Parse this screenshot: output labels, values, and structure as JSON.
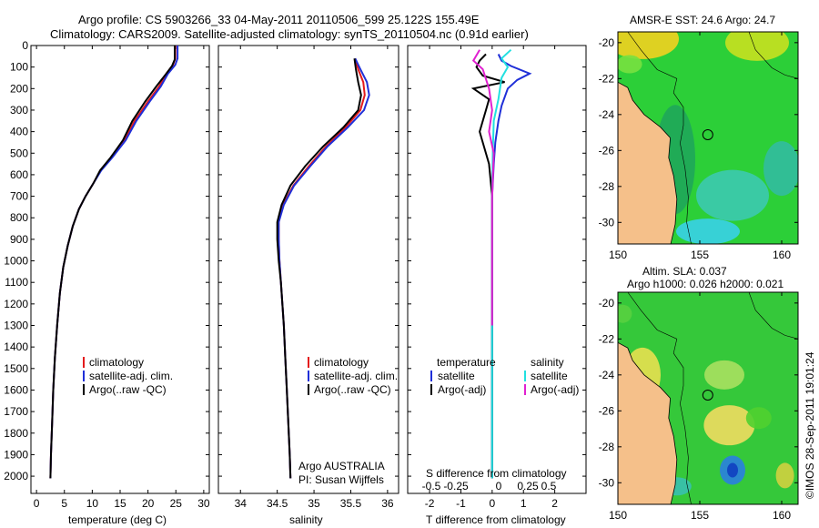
{
  "header": {
    "line1": "Argo profile: CS 5903266_33 04-May-2011 20110506_599 25.122S 155.49E",
    "line2": "Climatology: CARS2009. Satellite-adjusted climatology: synTS_20110504.nc (0.91d earlier)"
  },
  "colors": {
    "climatology": "#e41a1c",
    "satellite": "#1f2fd8",
    "argo": "#000000",
    "sal_satellite": "#22e0e0",
    "sal_argo": "#e020d0",
    "land": "#f5c08a"
  },
  "chart_data": [
    {
      "type": "line",
      "id": "temperature-panel",
      "xlabel": "temperature (deg C)",
      "ylabel": "",
      "xlim": [
        -1,
        31
      ],
      "ylim": [
        2080,
        0
      ],
      "x_ticks": [
        0,
        5,
        10,
        15,
        20,
        25,
        30
      ],
      "y_ticks": [
        0,
        100,
        200,
        300,
        400,
        500,
        600,
        700,
        800,
        900,
        1000,
        1100,
        1200,
        1300,
        1400,
        1500,
        1600,
        1700,
        1800,
        1900,
        2000
      ],
      "legend": [
        "climatology",
        "satellite-adj. clim.",
        "Argo(..raw -QC)"
      ],
      "series": [
        {
          "name": "climatology",
          "points": [
            [
              24.9,
              0
            ],
            [
              24.9,
              60
            ],
            [
              24.5,
              90
            ],
            [
              23.3,
              130
            ],
            [
              22,
              190
            ],
            [
              20,
              260
            ],
            [
              17.6,
              350
            ],
            [
              15.8,
              440
            ],
            [
              13.5,
              520
            ],
            [
              11.5,
              580
            ],
            [
              10.2,
              640
            ],
            [
              8.8,
              700
            ],
            [
              7.6,
              760
            ],
            [
              6.5,
              840
            ],
            [
              5.6,
              930
            ],
            [
              4.8,
              1030
            ],
            [
              4.2,
              1150
            ],
            [
              3.7,
              1300
            ],
            [
              3.3,
              1450
            ],
            [
              3,
              1600
            ],
            [
              2.8,
              1750
            ],
            [
              2.6,
              1900
            ],
            [
              2.5,
              2010
            ]
          ]
        },
        {
          "name": "satellite-adj. clim.",
          "points": [
            [
              25.3,
              0
            ],
            [
              25.3,
              60
            ],
            [
              24.9,
              90
            ],
            [
              23.6,
              130
            ],
            [
              22.3,
              190
            ],
            [
              20.3,
              260
            ],
            [
              17.9,
              350
            ],
            [
              16,
              440
            ],
            [
              13.6,
              520
            ],
            [
              11.6,
              580
            ],
            [
              10.2,
              640
            ],
            [
              8.8,
              700
            ],
            [
              7.6,
              760
            ],
            [
              6.5,
              840
            ],
            [
              5.6,
              930
            ],
            [
              4.8,
              1030
            ],
            [
              4.2,
              1150
            ],
            [
              3.7,
              1300
            ],
            [
              3.3,
              1450
            ],
            [
              3,
              1600
            ],
            [
              2.8,
              1750
            ],
            [
              2.6,
              1900
            ],
            [
              2.5,
              2010
            ]
          ]
        },
        {
          "name": "Argo(..raw -QC)",
          "points": [
            [
              24.8,
              0
            ],
            [
              24.8,
              65
            ],
            [
              24.3,
              95
            ],
            [
              23.3,
              130
            ],
            [
              21.5,
              190
            ],
            [
              19.5,
              260
            ],
            [
              17.2,
              350
            ],
            [
              15.5,
              440
            ],
            [
              13.3,
              520
            ],
            [
              11.4,
              580
            ],
            [
              10.2,
              640
            ],
            [
              8.8,
              700
            ],
            [
              7.6,
              760
            ],
            [
              6.5,
              840
            ],
            [
              5.6,
              930
            ],
            [
              4.8,
              1030
            ],
            [
              4.2,
              1150
            ],
            [
              3.7,
              1300
            ],
            [
              3.3,
              1450
            ],
            [
              3,
              1600
            ],
            [
              2.8,
              1750
            ],
            [
              2.6,
              1900
            ],
            [
              2.5,
              2010
            ]
          ]
        }
      ]
    },
    {
      "type": "line",
      "id": "salinity-panel",
      "xlabel": "salinity",
      "xlim": [
        33.7,
        36.15
      ],
      "ylim": [
        2080,
        0
      ],
      "x_ticks": [
        34,
        34.5,
        35,
        35.5,
        36
      ],
      "legend": [
        "climatology",
        "satellite-adj. clim.",
        "Argo(..raw -QC)"
      ],
      "annotation": [
        "Argo AUSTRALIA",
        "PI: Susan Wijffels"
      ],
      "series": [
        {
          "name": "climatology",
          "points": [
            [
              35.56,
              60
            ],
            [
              35.6,
              110
            ],
            [
              35.67,
              170
            ],
            [
              35.69,
              230
            ],
            [
              35.63,
              300
            ],
            [
              35.43,
              380
            ],
            [
              35.16,
              470
            ],
            [
              34.93,
              560
            ],
            [
              34.72,
              650
            ],
            [
              34.58,
              740
            ],
            [
              34.52,
              820
            ],
            [
              34.52,
              900
            ],
            [
              34.53,
              1000
            ],
            [
              34.55,
              1100
            ],
            [
              34.57,
              1200
            ],
            [
              34.59,
              1300
            ],
            [
              34.61,
              1450
            ],
            [
              34.63,
              1600
            ],
            [
              34.65,
              1750
            ],
            [
              34.67,
              1900
            ],
            [
              34.68,
              2010
            ]
          ]
        },
        {
          "name": "satellite-adj. clim.",
          "points": [
            [
              35.56,
              60
            ],
            [
              35.63,
              110
            ],
            [
              35.72,
              170
            ],
            [
              35.75,
              230
            ],
            [
              35.68,
              300
            ],
            [
              35.46,
              380
            ],
            [
              35.18,
              470
            ],
            [
              34.95,
              560
            ],
            [
              34.73,
              650
            ],
            [
              34.59,
              740
            ],
            [
              34.52,
              820
            ],
            [
              34.52,
              900
            ],
            [
              34.53,
              1000
            ],
            [
              34.55,
              1100
            ],
            [
              34.57,
              1200
            ],
            [
              34.59,
              1300
            ],
            [
              34.61,
              1450
            ],
            [
              34.63,
              1600
            ],
            [
              34.65,
              1750
            ],
            [
              34.67,
              1900
            ],
            [
              34.68,
              2010
            ]
          ]
        },
        {
          "name": "Argo(..raw -QC)",
          "points": [
            [
              35.55,
              60
            ],
            [
              35.57,
              110
            ],
            [
              35.6,
              170
            ],
            [
              35.64,
              230
            ],
            [
              35.6,
              300
            ],
            [
              35.4,
              380
            ],
            [
              35.12,
              470
            ],
            [
              34.88,
              560
            ],
            [
              34.68,
              650
            ],
            [
              34.56,
              740
            ],
            [
              34.5,
              820
            ],
            [
              34.5,
              900
            ],
            [
              34.52,
              1000
            ],
            [
              34.55,
              1100
            ],
            [
              34.57,
              1200
            ],
            [
              34.59,
              1300
            ],
            [
              34.61,
              1450
            ],
            [
              34.63,
              1600
            ],
            [
              34.65,
              1750
            ],
            [
              34.67,
              1900
            ],
            [
              34.68,
              2010
            ]
          ]
        }
      ]
    },
    {
      "type": "line",
      "id": "difference-panel",
      "xlabel_bottom": "T difference from climatology",
      "xlabel_top": "S difference from climatology",
      "xlim_T": [
        -2.7,
        3.0
      ],
      "ylim": [
        2080,
        0
      ],
      "x_ticks_T": [
        -2,
        -1,
        0,
        1,
        2
      ],
      "x_ticks_S": [
        "-0.5",
        "-0.25",
        "0",
        "0.25",
        "0.5"
      ],
      "legend_temperature": {
        "title": "temperature",
        "items": [
          "satellite",
          "Argo(-adj)"
        ]
      },
      "legend_salinity": {
        "title": "salinity",
        "items": [
          "satellite",
          "Argo(-adj)"
        ]
      },
      "series": [
        {
          "name": "T satellite",
          "points": [
            [
              0.2,
              40
            ],
            [
              0.3,
              70
            ],
            [
              0.6,
              95
            ],
            [
              1.2,
              130
            ],
            [
              0.8,
              160
            ],
            [
              0.5,
              200
            ],
            [
              0.3,
              280
            ],
            [
              0.2,
              350
            ],
            [
              0.1,
              450
            ],
            [
              0.05,
              550
            ],
            [
              0,
              700
            ],
            [
              0,
              900
            ],
            [
              0,
              1200
            ],
            [
              0,
              1600
            ],
            [
              0,
              2010
            ]
          ]
        },
        {
          "name": "T Argo(-adj)",
          "points": [
            [
              -0.2,
              40
            ],
            [
              -0.4,
              70
            ],
            [
              -0.5,
              100
            ],
            [
              -0.3,
              140
            ],
            [
              0.4,
              170
            ],
            [
              -0.6,
              200
            ],
            [
              -0.1,
              250
            ],
            [
              -0.2,
              300
            ],
            [
              -0.4,
              400
            ],
            [
              -0.3,
              450
            ],
            [
              -0.1,
              550
            ],
            [
              0,
              700
            ],
            [
              0,
              900
            ],
            [
              0,
              1200
            ],
            [
              0,
              1600
            ],
            [
              0,
              2010
            ]
          ]
        },
        {
          "name": "S satellite",
          "points": [
            [
              0.6,
              20
            ],
            [
              0.3,
              60
            ],
            [
              0.5,
              100
            ],
            [
              0.3,
              150
            ],
            [
              0.2,
              250
            ],
            [
              0.05,
              350
            ],
            [
              0.02,
              500
            ],
            [
              0,
              700
            ],
            [
              0,
              1000
            ],
            [
              0,
              1500
            ],
            [
              0,
              2010
            ]
          ]
        },
        {
          "name": "S Argo(-adj)",
          "points": [
            [
              -0.4,
              20
            ],
            [
              -0.6,
              70
            ],
            [
              -0.3,
              110
            ],
            [
              -0.1,
              200
            ],
            [
              0,
              300
            ],
            [
              -0.1,
              400
            ],
            [
              0.05,
              500
            ],
            [
              0,
              700
            ],
            [
              0,
              1000
            ],
            [
              0,
              1300
            ]
          ]
        }
      ]
    },
    {
      "type": "heatmap",
      "id": "sst-map",
      "title": "AMSR-E SST: 24.6 Argo: 24.7",
      "xlim": [
        150,
        161
      ],
      "ylim": [
        -31.2,
        -19.4
      ],
      "x_ticks": [
        150,
        155,
        160
      ],
      "y_ticks": [
        -20,
        -22,
        -24,
        -26,
        -28,
        -30
      ],
      "marker": [
        155.49,
        -25.122
      ]
    },
    {
      "type": "heatmap",
      "id": "sla-map",
      "title_line1": "Altim. SLA: 0.037",
      "title_line2": "Argo h1000: 0.026 h2000: 0.021",
      "xlim": [
        150,
        161
      ],
      "ylim": [
        -31.2,
        -19.4
      ],
      "x_ticks": [
        150,
        155,
        160
      ],
      "y_ticks": [
        -20,
        -22,
        -24,
        -26,
        -28,
        -30
      ],
      "marker": [
        155.49,
        -25.122
      ]
    }
  ],
  "footer": {
    "credit": "©IMOS 28-Sep-2011 19:01:24"
  }
}
